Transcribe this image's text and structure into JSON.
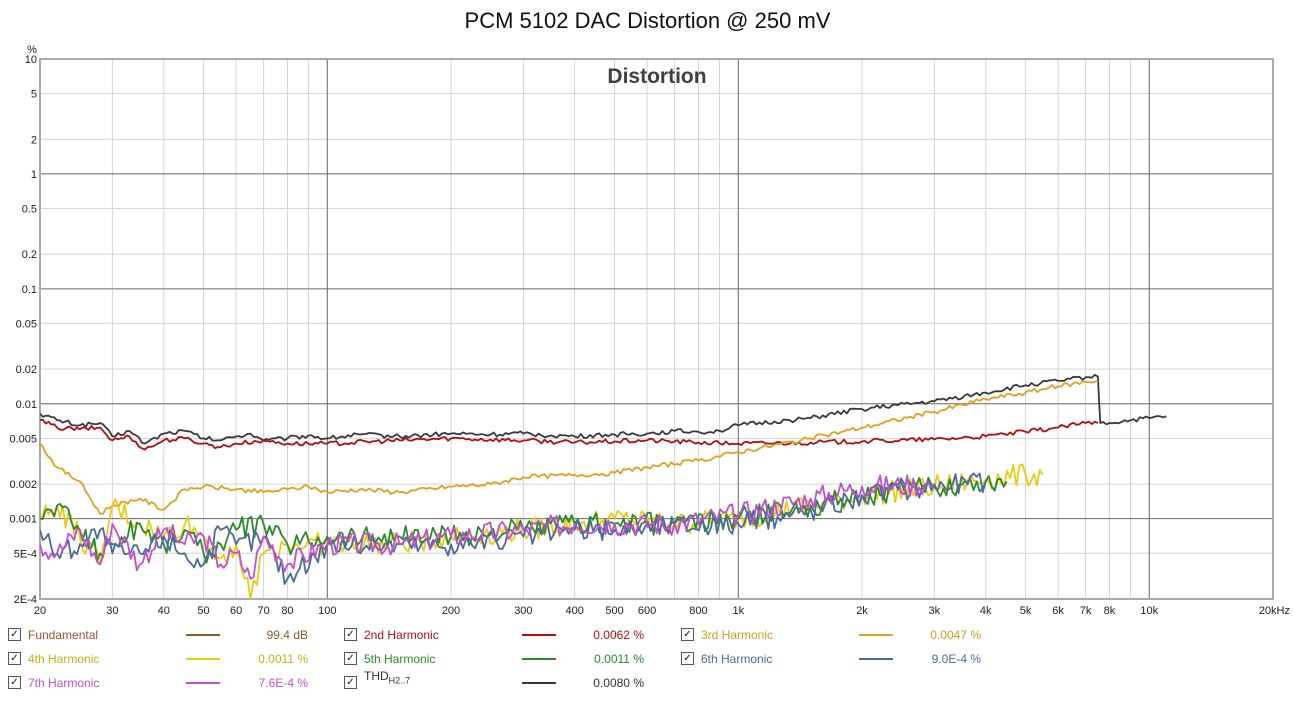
{
  "title": "PCM 5102 DAC Distortion @ 250 mV",
  "chart_data": {
    "type": "line",
    "title": "PCM 5102 DAC Distortion @ 250 mV",
    "plot_label": "Distortion",
    "ylabel": "%",
    "xlabel": "",
    "x_scale": "log",
    "y_scale": "log",
    "xlim": [
      20,
      20000
    ],
    "ylim": [
      0.0002,
      10
    ],
    "grid": true,
    "legend_placement": "bottom",
    "x_ticks": [
      {
        "v": 20,
        "label": "20"
      },
      {
        "v": 30,
        "label": "30"
      },
      {
        "v": 40,
        "label": "40"
      },
      {
        "v": 50,
        "label": "50"
      },
      {
        "v": 60,
        "label": "60"
      },
      {
        "v": 70,
        "label": "70"
      },
      {
        "v": 80,
        "label": "80"
      },
      {
        "v": 100,
        "label": "100"
      },
      {
        "v": 200,
        "label": "200"
      },
      {
        "v": 300,
        "label": "300"
      },
      {
        "v": 400,
        "label": "400"
      },
      {
        "v": 500,
        "label": "500"
      },
      {
        "v": 600,
        "label": "600"
      },
      {
        "v": 800,
        "label": "800"
      },
      {
        "v": 1000,
        "label": "1k"
      },
      {
        "v": 2000,
        "label": "2k"
      },
      {
        "v": 3000,
        "label": "3k"
      },
      {
        "v": 4000,
        "label": "4k"
      },
      {
        "v": 5000,
        "label": "5k"
      },
      {
        "v": 6000,
        "label": "6k"
      },
      {
        "v": 7000,
        "label": "7k"
      },
      {
        "v": 8000,
        "label": "8k"
      },
      {
        "v": 10000,
        "label": "10k"
      },
      {
        "v": 20000,
        "label": "20kHz"
      }
    ],
    "y_ticks": [
      {
        "v": 10,
        "label": "10"
      },
      {
        "v": 5,
        "label": "5"
      },
      {
        "v": 2,
        "label": "2"
      },
      {
        "v": 1,
        "label": "1"
      },
      {
        "v": 0.5,
        "label": "0.5"
      },
      {
        "v": 0.2,
        "label": "0.2"
      },
      {
        "v": 0.1,
        "label": "0.1"
      },
      {
        "v": 0.05,
        "label": "0.05"
      },
      {
        "v": 0.02,
        "label": "0.02"
      },
      {
        "v": 0.01,
        "label": "0.01"
      },
      {
        "v": 0.005,
        "label": "0.005"
      },
      {
        "v": 0.002,
        "label": "0.002"
      },
      {
        "v": 0.001,
        "label": "0.001"
      },
      {
        "v": 0.0005,
        "label": "5E-4"
      },
      {
        "v": 0.0002,
        "label": "2E-4"
      }
    ],
    "series": [
      {
        "name": "THD",
        "color": "#3a3a3a",
        "x": [
          20,
          22,
          25,
          28,
          30,
          33,
          36,
          40,
          45,
          50,
          55,
          60,
          65,
          70,
          80,
          90,
          100,
          120,
          150,
          200,
          250,
          300,
          350,
          400,
          500,
          600,
          700,
          800,
          900,
          1000,
          1500,
          2000,
          3000,
          4000,
          5000,
          6000,
          7000,
          7500,
          7600,
          8000,
          9000,
          10000,
          11000
        ],
        "y": [
          0.0082,
          0.0072,
          0.0065,
          0.0068,
          0.0052,
          0.0058,
          0.0045,
          0.0055,
          0.0058,
          0.005,
          0.0048,
          0.0052,
          0.0055,
          0.0048,
          0.005,
          0.0053,
          0.005,
          0.0054,
          0.0052,
          0.0055,
          0.0054,
          0.0055,
          0.0053,
          0.0052,
          0.0054,
          0.0055,
          0.0058,
          0.0057,
          0.0058,
          0.0065,
          0.0075,
          0.009,
          0.0105,
          0.0125,
          0.0145,
          0.0158,
          0.017,
          0.0172,
          0.0068,
          0.0068,
          0.0072,
          0.0075,
          0.0078
        ]
      },
      {
        "name": "2nd Harmonic",
        "color": "#b01010",
        "x": [
          20,
          22,
          25,
          28,
          30,
          33,
          36,
          40,
          45,
          50,
          55,
          60,
          70,
          80,
          100,
          150,
          200,
          300,
          400,
          500,
          600,
          800,
          1000,
          1500,
          2000,
          3000,
          4000,
          5000,
          6000,
          7000,
          7500
        ],
        "y": [
          0.0072,
          0.0062,
          0.006,
          0.0062,
          0.0048,
          0.0052,
          0.004,
          0.0048,
          0.005,
          0.0045,
          0.0042,
          0.0045,
          0.0048,
          0.0045,
          0.0045,
          0.0048,
          0.005,
          0.0048,
          0.0046,
          0.0047,
          0.0048,
          0.0046,
          0.0045,
          0.0046,
          0.0047,
          0.0049,
          0.0052,
          0.0057,
          0.0062,
          0.0068,
          0.0068
        ]
      },
      {
        "name": "3rd Harmonic",
        "color": "#e0a020",
        "x": [
          20,
          22,
          25,
          28,
          30,
          35,
          40,
          45,
          50,
          60,
          70,
          80,
          90,
          100,
          120,
          150,
          200,
          250,
          300,
          400,
          500,
          600,
          800,
          1000,
          1500,
          2000,
          3000,
          4000,
          5000,
          6000,
          7000,
          7500
        ],
        "y": [
          0.0045,
          0.0028,
          0.0021,
          0.0011,
          0.0013,
          0.0015,
          0.0012,
          0.0018,
          0.0019,
          0.0018,
          0.0017,
          0.0018,
          0.0019,
          0.0017,
          0.0018,
          0.0017,
          0.0019,
          0.002,
          0.0023,
          0.0024,
          0.0025,
          0.0028,
          0.0032,
          0.0038,
          0.005,
          0.0062,
          0.0085,
          0.011,
          0.0125,
          0.0142,
          0.0155,
          0.0158
        ]
      },
      {
        "name": "4th Harmonic",
        "color": "#e8cc10",
        "x": [
          20,
          22,
          25,
          28,
          30,
          35,
          40,
          45,
          50,
          55,
          60,
          65,
          70,
          80,
          100,
          150,
          200,
          300,
          400,
          500,
          700,
          1000,
          1500,
          2000,
          3000,
          4000,
          5000,
          5500
        ],
        "y": [
          0.001,
          0.0013,
          0.0007,
          0.0004,
          0.0013,
          0.0009,
          0.0007,
          0.0009,
          0.0007,
          0.00045,
          0.0006,
          0.0002,
          0.0005,
          0.0006,
          0.0006,
          0.0006,
          0.0007,
          0.0008,
          0.0009,
          0.001,
          0.0009,
          0.001,
          0.0013,
          0.0016,
          0.0019,
          0.0022,
          0.0024,
          0.0024
        ]
      },
      {
        "name": "5th Harmonic",
        "color": "#2a8a2a",
        "x": [
          20,
          22,
          25,
          28,
          30,
          35,
          40,
          45,
          50,
          55,
          60,
          70,
          80,
          100,
          150,
          200,
          300,
          400,
          500,
          700,
          1000,
          1500,
          2000,
          3000,
          4000,
          4500
        ],
        "y": [
          0.001,
          0.0013,
          0.0008,
          0.0005,
          0.0006,
          0.0009,
          0.0006,
          0.0008,
          0.0005,
          0.0006,
          0.0008,
          0.0009,
          0.0006,
          0.0007,
          0.0007,
          0.0007,
          0.0008,
          0.0009,
          0.0009,
          0.0009,
          0.001,
          0.0013,
          0.0016,
          0.0019,
          0.0021,
          0.0021
        ]
      },
      {
        "name": "6th Harmonic",
        "color": "#4a6aa0",
        "x": [
          20,
          22,
          25,
          28,
          30,
          35,
          40,
          45,
          50,
          55,
          60,
          70,
          80,
          100,
          150,
          200,
          300,
          400,
          500,
          700,
          1000,
          1500,
          2000,
          3000,
          4000
        ],
        "y": [
          0.0008,
          0.0005,
          0.0006,
          0.0008,
          0.0005,
          0.0005,
          0.0007,
          0.0005,
          0.0004,
          0.0008,
          0.0006,
          0.0007,
          0.0003,
          0.0006,
          0.0006,
          0.0006,
          0.0007,
          0.0008,
          0.0008,
          0.0009,
          0.0009,
          0.0012,
          0.0016,
          0.002,
          0.0021
        ]
      },
      {
        "name": "7th Harmonic",
        "color": "#c050d0",
        "x": [
          20,
          22,
          25,
          28,
          30,
          35,
          40,
          45,
          50,
          55,
          60,
          65,
          70,
          80,
          100,
          150,
          200,
          300,
          400,
          500,
          700,
          1000,
          1500,
          2000,
          3000
        ],
        "y": [
          0.0006,
          0.0005,
          0.0008,
          0.0004,
          0.0009,
          0.0004,
          0.0008,
          0.0006,
          0.0007,
          0.0004,
          0.0005,
          0.0003,
          0.0007,
          0.0004,
          0.0006,
          0.0006,
          0.0007,
          0.0008,
          0.0009,
          0.0009,
          0.0009,
          0.0011,
          0.0015,
          0.0019,
          0.002
        ]
      }
    ]
  },
  "legend": [
    {
      "name": "Fundamental",
      "sub": "",
      "color": "#8b5a2b",
      "label_color": "#a0522d",
      "value": "99.4 dB",
      "value_color": "#8b5a2b",
      "checked": "✓"
    },
    {
      "name": "2nd Harmonic",
      "sub": "",
      "color": "#b01010",
      "label_color": "#b01010",
      "value": "0.0062 %",
      "value_color": "#b01010",
      "checked": "✓"
    },
    {
      "name": "3rd Harmonic",
      "sub": "",
      "color": "#e0a020",
      "label_color": "#d49a20",
      "value": "0.0047 %",
      "value_color": "#d49a20",
      "checked": "✓"
    },
    {
      "name": "4th Harmonic",
      "sub": "",
      "color": "#e8cc10",
      "label_color": "#c8b010",
      "value": "0.0011 %",
      "value_color": "#c8b010",
      "checked": "✓"
    },
    {
      "name": "5th Harmonic",
      "sub": "",
      "color": "#2a8a2a",
      "label_color": "#2a8a2a",
      "value": "0.0011 %",
      "value_color": "#2a8a2a",
      "checked": "✓"
    },
    {
      "name": "6th Harmonic",
      "sub": "",
      "color": "#4a6aa0",
      "label_color": "#4a6aa0",
      "value": "9.0E-4 %",
      "value_color": "#4a6aa0",
      "checked": "✓"
    },
    {
      "name": "7th Harmonic",
      "sub": "",
      "color": "#c050d0",
      "label_color": "#c050d0",
      "value": "7.6E-4 %",
      "value_color": "#c050d0",
      "checked": "✓"
    },
    {
      "name": "THD",
      "sub": "H2..7",
      "color": "#3a3a3a",
      "label_color": "#333333",
      "value": "0.0080 %",
      "value_color": "#333333",
      "checked": "✓"
    }
  ]
}
